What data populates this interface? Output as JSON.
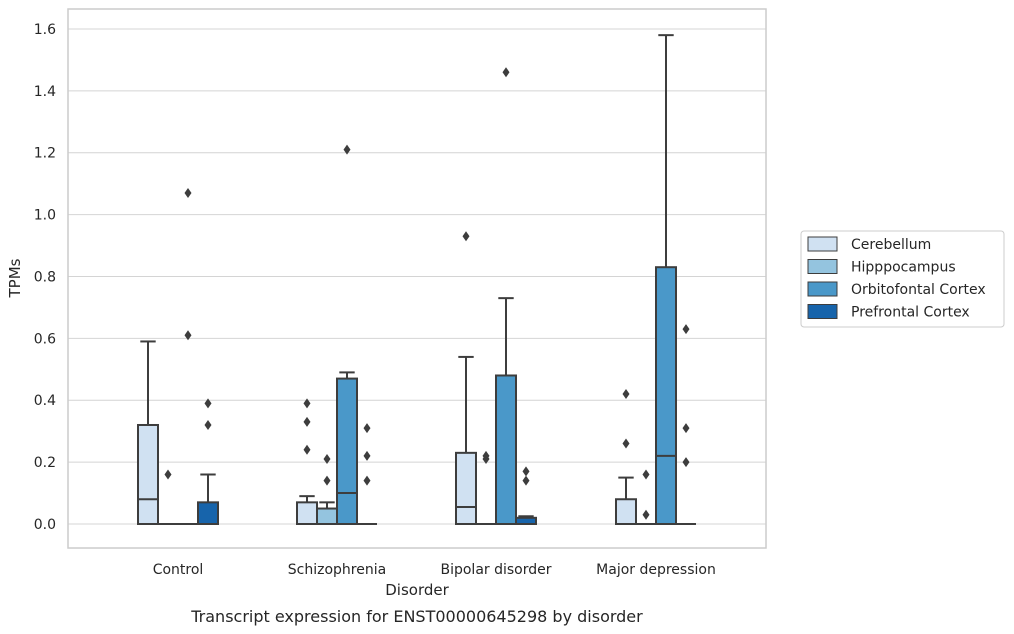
{
  "caption": "Transcript expression for ENST00000645298 by disorder",
  "chart_data": {
    "type": "box",
    "xlabel": "Disorder",
    "ylabel": "TPMs",
    "ylim": [
      -0.08,
      1.66
    ],
    "yticks": [
      0.0,
      0.2,
      0.4,
      0.6,
      0.8,
      1.0,
      1.2,
      1.4,
      1.6
    ],
    "ytick_labels": [
      "0.0",
      "0.2",
      "0.4",
      "0.6",
      "0.8",
      "1.0",
      "1.2",
      "1.4",
      "1.6"
    ],
    "grid": "horizontal",
    "legend_position": "right",
    "categories": [
      "Control",
      "Schizophrenia",
      "Bipolar disorder",
      "Major depression"
    ],
    "series": [
      {
        "name": "Cerebellum",
        "color": "#d0e1f2",
        "boxes": [
          {
            "q1": 0.0,
            "median": 0.08,
            "q3": 0.32,
            "whisker_low": 0.0,
            "whisker_high": 0.59,
            "outliers": []
          },
          {
            "q1": 0.0,
            "median": 0.0,
            "q3": 0.07,
            "whisker_low": 0.0,
            "whisker_high": 0.09,
            "outliers": [
              0.24,
              0.33,
              0.39
            ]
          },
          {
            "q1": 0.0,
            "median": 0.055,
            "q3": 0.23,
            "whisker_low": 0.0,
            "whisker_high": 0.54,
            "outliers": [
              0.93
            ]
          },
          {
            "q1": 0.0,
            "median": 0.0,
            "q3": 0.08,
            "whisker_low": 0.0,
            "whisker_high": 0.15,
            "outliers": [
              0.26,
              0.42
            ]
          }
        ]
      },
      {
        "name": "Hipppocampus",
        "color": "#94c4df",
        "boxes": [
          {
            "q1": 0.0,
            "median": 0.0,
            "q3": 0.0,
            "whisker_low": 0.0,
            "whisker_high": 0.0,
            "outliers": [
              0.16
            ]
          },
          {
            "q1": 0.0,
            "median": 0.0,
            "q3": 0.05,
            "whisker_low": 0.0,
            "whisker_high": 0.07,
            "outliers": [
              0.14,
              0.21
            ]
          },
          {
            "q1": 0.0,
            "median": 0.0,
            "q3": 0.0,
            "whisker_low": 0.0,
            "whisker_high": 0.0,
            "outliers": [
              0.21,
              0.22
            ]
          },
          {
            "q1": 0.0,
            "median": 0.0,
            "q3": 0.0,
            "whisker_low": 0.0,
            "whisker_high": 0.0,
            "outliers": [
              0.03,
              0.16
            ]
          }
        ]
      },
      {
        "name": "Orbitofontal Cortex",
        "color": "#4a98c9",
        "boxes": [
          {
            "q1": 0.0,
            "median": 0.0,
            "q3": 0.0,
            "whisker_low": 0.0,
            "whisker_high": 0.0,
            "outliers": [
              0.61,
              1.07
            ]
          },
          {
            "q1": 0.0,
            "median": 0.1,
            "q3": 0.47,
            "whisker_low": 0.0,
            "whisker_high": 0.49,
            "outliers": [
              1.21
            ]
          },
          {
            "q1": 0.0,
            "median": 0.0,
            "q3": 0.48,
            "whisker_low": 0.0,
            "whisker_high": 0.73,
            "outliers": [
              1.46
            ]
          },
          {
            "q1": 0.0,
            "median": 0.22,
            "q3": 0.83,
            "whisker_low": 0.0,
            "whisker_high": 1.58,
            "outliers": []
          }
        ]
      },
      {
        "name": "Prefrontal Cortex",
        "color": "#1764ab",
        "boxes": [
          {
            "q1": 0.0,
            "median": 0.0,
            "q3": 0.07,
            "whisker_low": 0.0,
            "whisker_high": 0.16,
            "outliers": [
              0.32,
              0.39
            ]
          },
          {
            "q1": 0.0,
            "median": 0.0,
            "q3": 0.0,
            "whisker_low": 0.0,
            "whisker_high": 0.0,
            "outliers": [
              0.14,
              0.22,
              0.31
            ]
          },
          {
            "q1": 0.0,
            "median": 0.0,
            "q3": 0.02,
            "whisker_low": 0.0,
            "whisker_high": 0.025,
            "outliers": [
              0.14,
              0.17
            ]
          },
          {
            "q1": 0.0,
            "median": 0.0,
            "q3": 0.0,
            "whisker_low": 0.0,
            "whisker_high": 0.0,
            "outliers": [
              0.2,
              0.31,
              0.63
            ]
          }
        ]
      }
    ]
  }
}
